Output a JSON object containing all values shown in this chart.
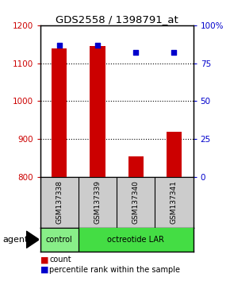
{
  "title": "GDS2558 / 1398791_at",
  "samples": [
    "GSM137338",
    "GSM137339",
    "GSM137340",
    "GSM137341"
  ],
  "counts": [
    1140,
    1145,
    855,
    920
  ],
  "percentiles": [
    87,
    87,
    82,
    82
  ],
  "ylim_left": [
    800,
    1200
  ],
  "ylim_right": [
    0,
    100
  ],
  "yticks_left": [
    800,
    900,
    1000,
    1100,
    1200
  ],
  "yticks_right": [
    0,
    25,
    50,
    75,
    100
  ],
  "ytick_labels_right": [
    "0",
    "25",
    "50",
    "75",
    "100%"
  ],
  "bar_color": "#cc0000",
  "dot_color": "#0000cc",
  "group_control_color": "#88ee88",
  "group_oct_color": "#44dd44",
  "group_control_label": "control",
  "group_oct_label": "octreotide LAR",
  "agent_label": "agent",
  "legend_count_label": "count",
  "legend_pct_label": "percentile rank within the sample",
  "bg_color": "#ffffff",
  "sample_box_color": "#cccccc",
  "bar_width": 0.4
}
